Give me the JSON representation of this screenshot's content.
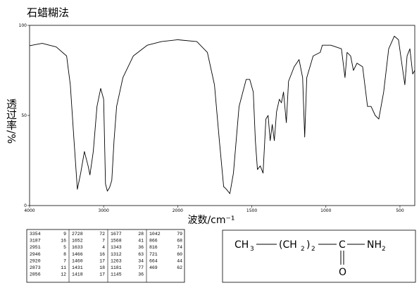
{
  "chart_data": {
    "type": "line",
    "title": "石蜡糊法",
    "x_label": "波数/cm⁻¹",
    "y_label": "透过率/%",
    "color": "#000000",
    "x": [
      4000,
      3830,
      3640,
      3500,
      3450,
      3400,
      3355,
      3310,
      3260,
      3210,
      3185,
      3140,
      3090,
      3040,
      3000,
      2975,
      2950,
      2920,
      2890,
      2860,
      2825,
      2740,
      2600,
      2410,
      2220,
      2000,
      1871,
      1800,
      1752,
      1719,
      1690,
      1671,
      1648,
      1624,
      1586,
      1538,
      1514,
      1490,
      1476,
      1462,
      1443,
      1424,
      1405,
      1390,
      1376,
      1362,
      1348,
      1333,
      1314,
      1300,
      1286,
      1267,
      1252,
      1214,
      1181,
      1157,
      1143,
      1129,
      1086,
      1038,
      1024,
      967,
      895,
      871,
      857,
      833,
      814,
      790,
      752,
      719,
      695,
      667,
      643,
      610,
      576,
      538,
      510,
      481,
      467,
      452,
      433,
      414,
      400
    ],
    "values": [
      88.7,
      90,
      88,
      83,
      67,
      36,
      9,
      18,
      30,
      22,
      17,
      30,
      55,
      65,
      59,
      12,
      8,
      10,
      14,
      36,
      55,
      71,
      83,
      89,
      91,
      92,
      91,
      85,
      67,
      36,
      10.5,
      9,
      6.6,
      18,
      55,
      70,
      70,
      63,
      36,
      20,
      22,
      18,
      48,
      50,
      36,
      45,
      36,
      52,
      59,
      57,
      63,
      46,
      69,
      77,
      81,
      71,
      38,
      71,
      83,
      85,
      89,
      89,
      87,
      71,
      85,
      83,
      75,
      79,
      77,
      55,
      55,
      50,
      48,
      63,
      87,
      94,
      92,
      75,
      67,
      83,
      87,
      73,
      75
    ],
    "xlim": [
      4000,
      400
    ],
    "xticks": [
      4000,
      3000,
      2000,
      1500,
      1000,
      500
    ],
    "ylim": [
      0,
      100
    ],
    "yticks": [
      0,
      50,
      100
    ]
  },
  "peak_table": {
    "columns": [
      [
        [
          3354,
          9
        ],
        [
          3187,
          16
        ],
        [
          2951,
          5
        ],
        [
          2946,
          8
        ],
        [
          2920,
          7
        ],
        [
          2873,
          11
        ],
        [
          2856,
          12
        ]
      ],
      [
        [
          2728,
          72
        ],
        [
          1652,
          7
        ],
        [
          1633,
          4
        ],
        [
          1466,
          16
        ],
        [
          1460,
          17
        ],
        [
          1431,
          18
        ],
        [
          1418,
          17
        ]
      ],
      [
        [
          1677,
          28
        ],
        [
          1568,
          41
        ],
        [
          1343,
          36
        ],
        [
          1312,
          63
        ],
        [
          1263,
          34
        ],
        [
          1181,
          77
        ],
        [
          1145,
          36
        ]
      ],
      [
        [
          1042,
          79
        ],
        [
          866,
          68
        ],
        [
          816,
          74
        ],
        [
          721,
          60
        ],
        [
          664,
          44
        ],
        [
          469,
          62
        ]
      ]
    ]
  },
  "structure": {
    "methyl": [
      "CH",
      "3"
    ],
    "chain": [
      "(CH",
      "2",
      ")",
      "2"
    ],
    "carbon": "C",
    "oxygen": "O",
    "amine": [
      "NH",
      "2"
    ]
  }
}
